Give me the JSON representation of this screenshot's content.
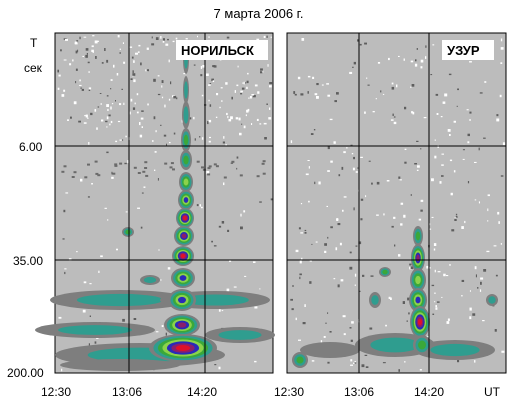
{
  "title": "7 марта 2006 г.",
  "chart_data": {
    "type": "heatmap",
    "title": "7 марта 2006 г.",
    "ylabel": "T",
    "yunit": "сек",
    "xunit": "UT",
    "y_ticks": [
      "6.00",
      "35.00",
      "200.00"
    ],
    "x_ticks": [
      "12:30",
      "13:06",
      "14:20"
    ],
    "grid": true,
    "palette": [
      "#bcbcbc",
      "#7e7e7e",
      "#2f9d8f",
      "#3aa83a",
      "#8bd24b",
      "#2a2ab8",
      "#8a1e6c",
      "#e0102a"
    ],
    "panels": [
      {
        "station": "НОРИЛЬСК",
        "x_tick_labels": [
          "12:30",
          "13:06",
          "14:20"
        ],
        "feature": "intensity maximum drifting from short to long periods",
        "intensity_levels": [
          1,
          2,
          3,
          4,
          5,
          6,
          7
        ]
      },
      {
        "station": "УЗУР",
        "x_tick_labels": [
          "12:30",
          "13:06",
          "14:20"
        ],
        "feature": "intensity maximum drifting from short to long periods",
        "intensity_levels": [
          1,
          2,
          3,
          4,
          5,
          6,
          7
        ]
      }
    ]
  }
}
